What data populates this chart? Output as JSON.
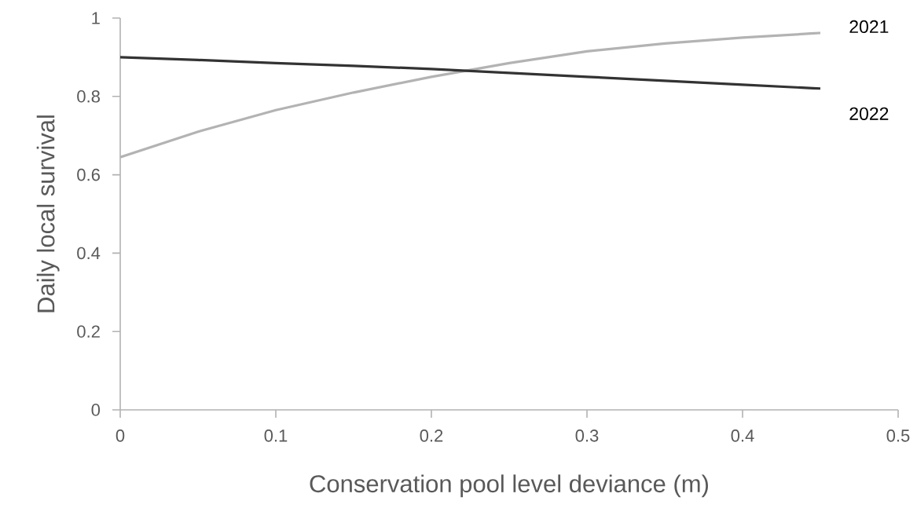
{
  "chart_data": {
    "type": "line",
    "xlabel": "Conservation pool level deviance (m)",
    "ylabel": "Daily local survival",
    "x": [
      0,
      0.05,
      0.1,
      0.15,
      0.2,
      0.25,
      0.3,
      0.35,
      0.4,
      0.45
    ],
    "series": [
      {
        "name": "2021",
        "color": "#b3b3b3",
        "values": [
          0.645,
          0.71,
          0.765,
          0.81,
          0.85,
          0.885,
          0.915,
          0.935,
          0.95,
          0.962
        ]
      },
      {
        "name": "2022",
        "color": "#333333",
        "values": [
          0.9,
          0.893,
          0.885,
          0.878,
          0.87,
          0.86,
          0.85,
          0.84,
          0.83,
          0.82
        ]
      }
    ],
    "xlim": [
      0,
      0.5
    ],
    "xticks": [
      0,
      0.1,
      0.2,
      0.3,
      0.4,
      0.5
    ],
    "ylim": [
      0,
      1
    ],
    "yticks": [
      0,
      0.2,
      0.4,
      0.6,
      0.8,
      1
    ],
    "grid": false,
    "legend": false,
    "marker": "none",
    "line_style": "solid"
  }
}
